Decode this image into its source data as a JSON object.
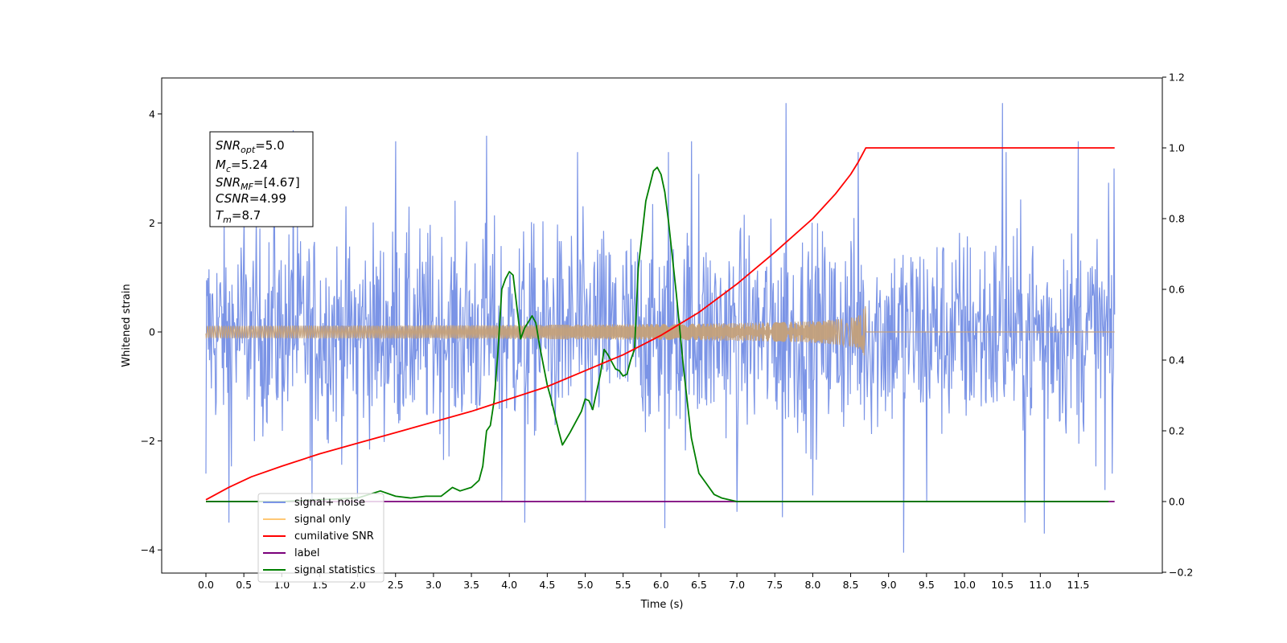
{
  "chart_data": {
    "type": "line",
    "xlabel": "Time (s)",
    "ylabel": "Whitened strain",
    "xlim": [
      -0.6,
      12.6
    ],
    "ylim_left": [
      -4.4,
      4.7
    ],
    "ylim_right": [
      -0.2,
      1.2
    ],
    "x_ticks": [
      "0.0",
      "0.5",
      "1.0",
      "1.5",
      "2.0",
      "2.5",
      "3.0",
      "3.5",
      "4.0",
      "4.5",
      "5.0",
      "5.5",
      "6.0",
      "6.5",
      "7.0",
      "7.5",
      "8.0",
      "8.5",
      "9.0",
      "9.5",
      "10.0",
      "10.5",
      "11.0",
      "11.5"
    ],
    "y_ticks_left": [
      "−4",
      "−2",
      "0",
      "2",
      "4"
    ],
    "y_ticks_right": [
      "−0.2",
      "0.0",
      "0.2",
      "0.4",
      "0.6",
      "0.8",
      "1.0",
      "1.2"
    ],
    "info_box": {
      "snr_opt": "=5.0",
      "mc": "=5.24",
      "snr_mf": "=[4.67]",
      "csnr": "=4.99",
      "tm": "=8.7"
    },
    "legend": [
      "signal+ noise",
      "signal only",
      "cumilative SNR",
      "label",
      "signal statistics"
    ],
    "legend_placement": "lower-left",
    "series": [
      {
        "name": "signal+ noise",
        "axis": "left",
        "color": "#7b94e6",
        "description_range": [
          -2.5,
          2.5
        ],
        "spikes": [
          [
            0.0,
            2.1
          ],
          [
            0.0,
            -2.6
          ],
          [
            0.3,
            -3.5
          ],
          [
            0.5,
            2.2
          ],
          [
            0.9,
            2.4
          ],
          [
            1.15,
            3.7
          ],
          [
            1.4,
            -3.2
          ],
          [
            2.0,
            2.8
          ],
          [
            2.5,
            3.5
          ],
          [
            2.0,
            -3.2
          ],
          [
            3.7,
            3.6
          ],
          [
            3.9,
            -3.1
          ],
          [
            4.2,
            -3.5
          ],
          [
            4.9,
            3.3
          ],
          [
            5.0,
            -3.1
          ],
          [
            6.1,
            3.3
          ],
          [
            6.4,
            3.5
          ],
          [
            6.05,
            -3.6
          ],
          [
            6.5,
            2.9
          ],
          [
            7.0,
            -3.3
          ],
          [
            7.6,
            -3.4
          ],
          [
            7.65,
            4.2
          ],
          [
            8.0,
            -3.0
          ],
          [
            8.6,
            3.3
          ],
          [
            9.2,
            -4.05
          ],
          [
            9.5,
            -3.1
          ],
          [
            10.5,
            4.2
          ],
          [
            10.55,
            3.3
          ],
          [
            10.8,
            -3.5
          ],
          [
            11.05,
            -3.7
          ],
          [
            11.5,
            3.5
          ],
          [
            11.85,
            -2.9
          ],
          [
            11.97,
            3.0
          ],
          [
            11.95,
            -2.6
          ]
        ]
      },
      {
        "name": "signal only",
        "axis": "left",
        "color": "#c4a07a",
        "start": 0.0,
        "end": 8.7,
        "final_amplitude": 0.55
      },
      {
        "name": "cumilative SNR",
        "axis": "right",
        "color": "#ff0000",
        "x": [
          0.0,
          0.3,
          0.6,
          1.0,
          1.5,
          2.0,
          2.5,
          3.0,
          3.5,
          4.0,
          4.5,
          5.0,
          5.5,
          6.0,
          6.5,
          7.0,
          7.5,
          8.0,
          8.3,
          8.5,
          8.6,
          8.65,
          8.7,
          9.0,
          10.0,
          11.0,
          11.98
        ],
        "y": [
          0.005,
          0.04,
          0.07,
          0.1,
          0.135,
          0.165,
          0.195,
          0.225,
          0.255,
          0.29,
          0.325,
          0.37,
          0.415,
          0.47,
          0.535,
          0.615,
          0.705,
          0.8,
          0.87,
          0.925,
          0.96,
          0.98,
          1.0,
          1.0,
          1.0,
          1.0,
          1.0
        ]
      },
      {
        "name": "label",
        "axis": "right",
        "color": "#7a007a",
        "x": [
          0.0,
          11.98
        ],
        "y": [
          0.0,
          0.0
        ]
      },
      {
        "name": "signal statistics",
        "axis": "right",
        "color": "#007f00",
        "x": [
          0.0,
          1.0,
          2.0,
          2.3,
          2.5,
          2.7,
          2.9,
          3.1,
          3.25,
          3.35,
          3.5,
          3.6,
          3.65,
          3.7,
          3.75,
          3.8,
          3.85,
          3.9,
          3.95,
          4.0,
          4.05,
          4.1,
          4.15,
          4.2,
          4.3,
          4.35,
          4.4,
          4.5,
          4.55,
          4.65,
          4.7,
          4.8,
          4.9,
          4.95,
          5.0,
          5.05,
          5.1,
          5.2,
          5.25,
          5.3,
          5.4,
          5.45,
          5.5,
          5.55,
          5.6,
          5.65,
          5.7,
          5.8,
          5.9,
          5.95,
          6.0,
          6.05,
          6.1,
          6.2,
          6.3,
          6.4,
          6.5,
          6.6,
          6.7,
          6.8,
          7.0,
          7.5,
          8.0,
          9.0,
          10.0,
          11.0,
          11.9
        ],
        "y": [
          0.0,
          0.0,
          0.01,
          0.03,
          0.015,
          0.01,
          0.015,
          0.015,
          0.04,
          0.03,
          0.04,
          0.06,
          0.1,
          0.2,
          0.215,
          0.285,
          0.425,
          0.6,
          0.63,
          0.65,
          0.64,
          0.55,
          0.46,
          0.49,
          0.525,
          0.505,
          0.44,
          0.33,
          0.29,
          0.2,
          0.16,
          0.195,
          0.235,
          0.255,
          0.29,
          0.285,
          0.26,
          0.36,
          0.43,
          0.415,
          0.375,
          0.37,
          0.355,
          0.36,
          0.4,
          0.43,
          0.66,
          0.85,
          0.935,
          0.945,
          0.925,
          0.875,
          0.79,
          0.59,
          0.37,
          0.18,
          0.08,
          0.05,
          0.02,
          0.01,
          0.0,
          0.0,
          0.0,
          0.0,
          0.0,
          0.0,
          0.0
        ]
      }
    ]
  }
}
